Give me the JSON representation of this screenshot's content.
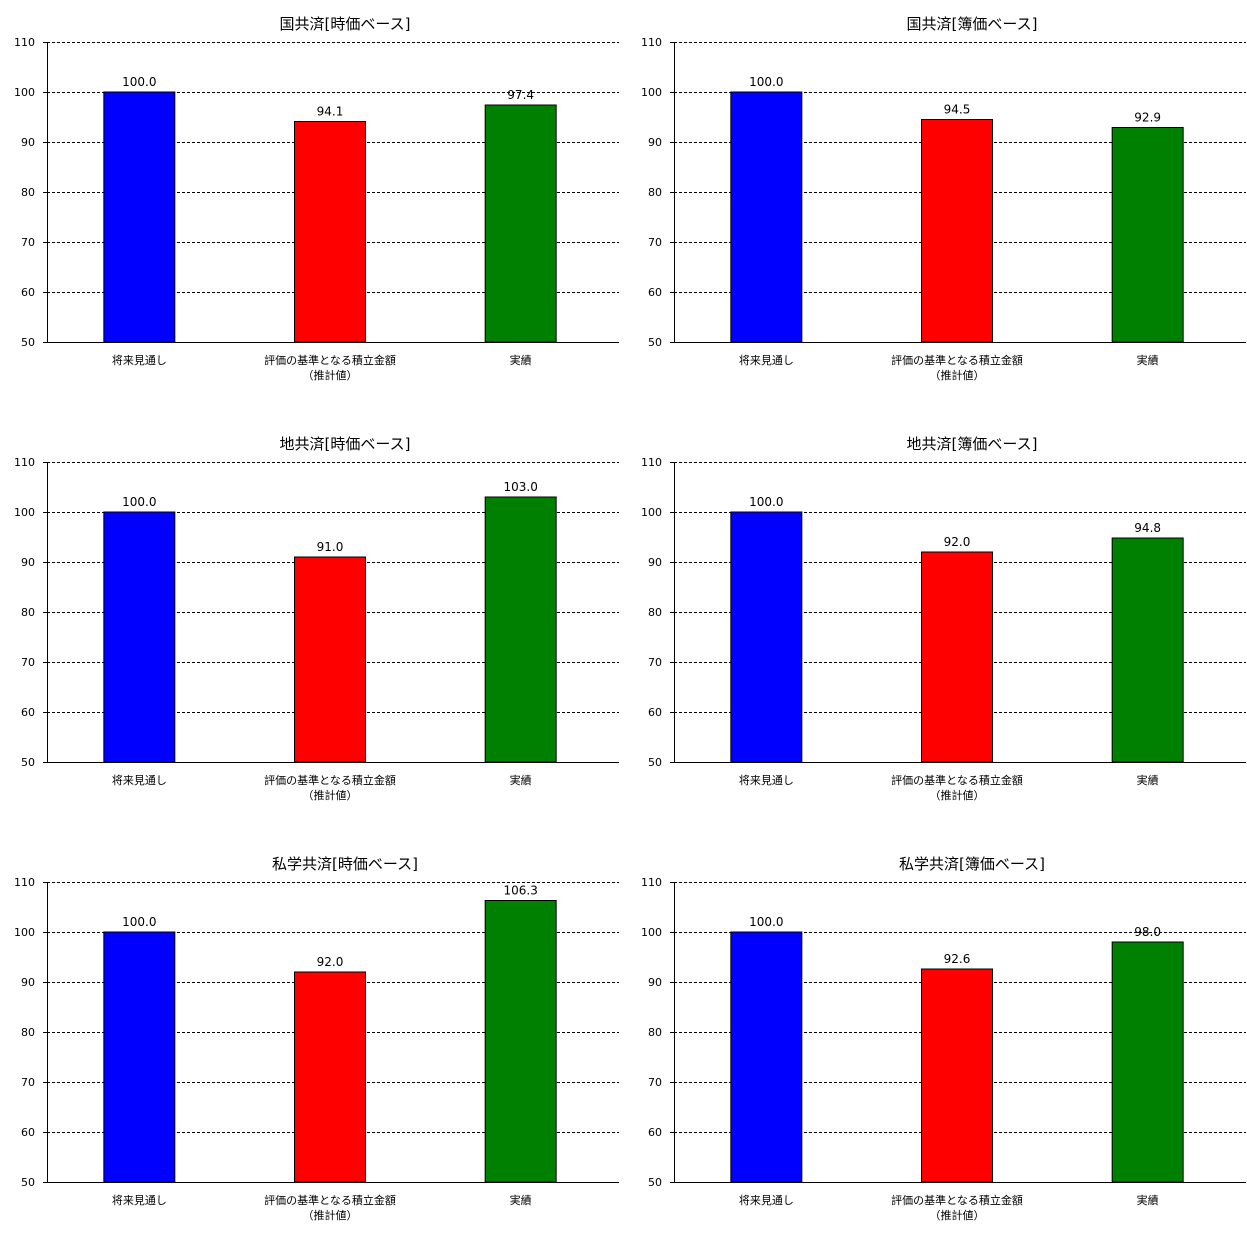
{
  "chart_data": [
    {
      "type": "bar",
      "title": "国共済[時価ベース]",
      "categories": [
        [
          "将来見通し"
        ],
        [
          "評価の基準となる積立金額",
          "（推計値）"
        ],
        [
          "実績"
        ]
      ],
      "values": [
        100.0,
        94.1,
        97.4
      ],
      "value_labels": [
        "100.0",
        "94.1",
        "97.4"
      ],
      "bar_colors": [
        "#0000ff",
        "#ff0000",
        "#008000"
      ],
      "ylim": [
        50,
        110
      ],
      "yticks": [
        50,
        60,
        70,
        80,
        90,
        100,
        110
      ],
      "grid": "dashed horizontal",
      "legend": "none"
    },
    {
      "type": "bar",
      "title": "国共済[簿価ベース]",
      "categories": [
        [
          "将来見通し"
        ],
        [
          "評価の基準となる積立金額",
          "（推計値）"
        ],
        [
          "実績"
        ]
      ],
      "values": [
        100.0,
        94.5,
        92.9
      ],
      "value_labels": [
        "100.0",
        "94.5",
        "92.9"
      ],
      "bar_colors": [
        "#0000ff",
        "#ff0000",
        "#008000"
      ],
      "ylim": [
        50,
        110
      ],
      "yticks": [
        50,
        60,
        70,
        80,
        90,
        100,
        110
      ],
      "grid": "dashed horizontal",
      "legend": "none"
    },
    {
      "type": "bar",
      "title": "地共済[時価ベース]",
      "categories": [
        [
          "将来見通し"
        ],
        [
          "評価の基準となる積立金額",
          "（推計値）"
        ],
        [
          "実績"
        ]
      ],
      "values": [
        100.0,
        91.0,
        103.0
      ],
      "value_labels": [
        "100.0",
        "91.0",
        "103.0"
      ],
      "bar_colors": [
        "#0000ff",
        "#ff0000",
        "#008000"
      ],
      "ylim": [
        50,
        110
      ],
      "yticks": [
        50,
        60,
        70,
        80,
        90,
        100,
        110
      ],
      "grid": "dashed horizontal",
      "legend": "none"
    },
    {
      "type": "bar",
      "title": "地共済[簿価ベース]",
      "categories": [
        [
          "将来見通し"
        ],
        [
          "評価の基準となる積立金額",
          "（推計値）"
        ],
        [
          "実績"
        ]
      ],
      "values": [
        100.0,
        92.0,
        94.8
      ],
      "value_labels": [
        "100.0",
        "92.0",
        "94.8"
      ],
      "bar_colors": [
        "#0000ff",
        "#ff0000",
        "#008000"
      ],
      "ylim": [
        50,
        110
      ],
      "yticks": [
        50,
        60,
        70,
        80,
        90,
        100,
        110
      ],
      "grid": "dashed horizontal",
      "legend": "none"
    },
    {
      "type": "bar",
      "title": "私学共済[時価ベース]",
      "categories": [
        [
          "将来見通し"
        ],
        [
          "評価の基準となる積立金額",
          "（推計値）"
        ],
        [
          "実績"
        ]
      ],
      "values": [
        100.0,
        92.0,
        106.3
      ],
      "value_labels": [
        "100.0",
        "92.0",
        "106.3"
      ],
      "bar_colors": [
        "#0000ff",
        "#ff0000",
        "#008000"
      ],
      "ylim": [
        50,
        110
      ],
      "yticks": [
        50,
        60,
        70,
        80,
        90,
        100,
        110
      ],
      "grid": "dashed horizontal",
      "legend": "none"
    },
    {
      "type": "bar",
      "title": "私学共済[簿価ベース]",
      "categories": [
        [
          "将来見通し"
        ],
        [
          "評価の基準となる積立金額",
          "（推計値）"
        ],
        [
          "実績"
        ]
      ],
      "values": [
        100.0,
        92.6,
        98.0
      ],
      "value_labels": [
        "100.0",
        "92.6",
        "98.0"
      ],
      "bar_colors": [
        "#0000ff",
        "#ff0000",
        "#008000"
      ],
      "ylim": [
        50,
        110
      ],
      "yticks": [
        50,
        60,
        70,
        80,
        90,
        100,
        110
      ],
      "grid": "dashed horizontal",
      "legend": "none"
    }
  ]
}
